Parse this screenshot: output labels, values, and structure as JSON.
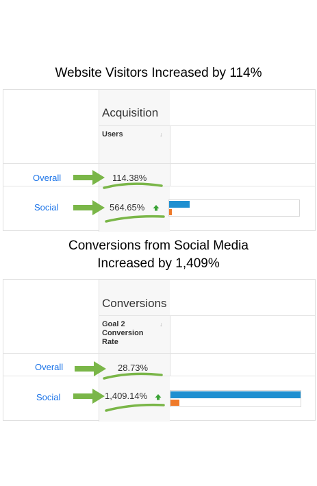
{
  "headings": {
    "top": "Website Visitors Increased by 114%",
    "bottom_line1": "Conversions from Social Media",
    "bottom_line2": "Increased by 1,409%"
  },
  "acquisition_panel": {
    "group_title": "Acquisition",
    "column_header": "Users",
    "rows": [
      {
        "label": "Overall",
        "value": "114.38%"
      },
      {
        "label": "Social",
        "value": "564.65%"
      }
    ]
  },
  "conversions_panel": {
    "group_title": "Conversions",
    "column_header": "Goal 2 Conversion Rate",
    "rows": [
      {
        "label": "Overall",
        "value": "28.73%"
      },
      {
        "label": "Social",
        "value": "1,409.14%"
      }
    ]
  },
  "colors": {
    "arrow": "#7ab648",
    "link": "#1a73e8",
    "bar_blue": "#1f8fd0",
    "bar_orange": "#ef7a2a"
  },
  "bars": {
    "acquisition_social_blue_fraction": 0.16,
    "acquisition_social_orange_fraction": 0.02,
    "conversions_social_blue_fraction": 1.0,
    "conversions_social_orange_fraction": 0.07
  }
}
